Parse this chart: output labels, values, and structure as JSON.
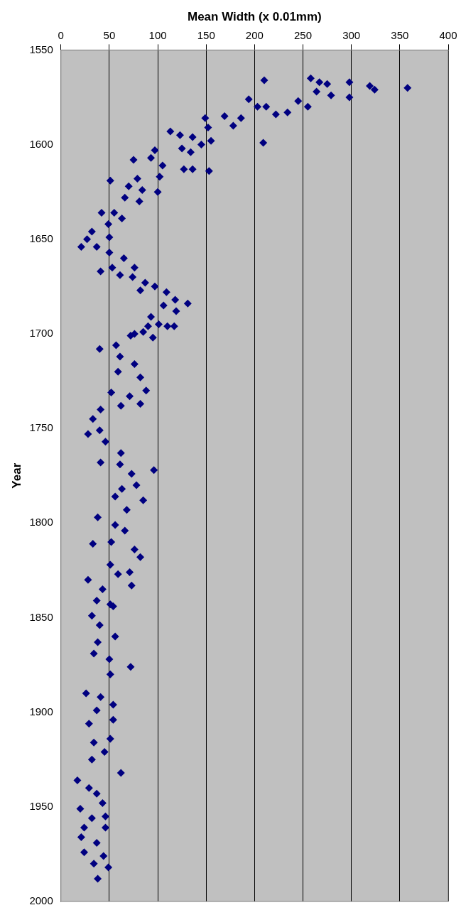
{
  "chart_data": {
    "type": "scatter",
    "xlabel": "Mean Width (x 0.01mm)",
    "ylabel": "Year",
    "xlim": [
      0,
      400
    ],
    "xticks": [
      0,
      50,
      100,
      150,
      200,
      250,
      300,
      350,
      400
    ],
    "ylim": [
      2000,
      1550
    ],
    "yticks": [
      1550,
      1600,
      1650,
      1700,
      1750,
      1800,
      1850,
      1900,
      1950,
      2000
    ],
    "grid": "x",
    "marker": "diamond",
    "legend": false,
    "series": [
      {
        "color": "#000080",
        "x": [
          210,
          258,
          267,
          275,
          298,
          319,
          324,
          358,
          264,
          279,
          298,
          194,
          203,
          212,
          222,
          234,
          245,
          255,
          149,
          169,
          186,
          178,
          152,
          113,
          123,
          136,
          155,
          209,
          145,
          125,
          134,
          97,
          93,
          105,
          75,
          127,
          136,
          153,
          102,
          51,
          79,
          70,
          84,
          100,
          66,
          81,
          42,
          55,
          63,
          49,
          32,
          27,
          21,
          37,
          50,
          50,
          65,
          41,
          53,
          61,
          76,
          74,
          87,
          82,
          97,
          109,
          118,
          131,
          106,
          119,
          93,
          101,
          117,
          85,
          72,
          90,
          110,
          76,
          95,
          40,
          57,
          61,
          76,
          59,
          82,
          88,
          71,
          52,
          82,
          62,
          41,
          33,
          40,
          28,
          46,
          62,
          41,
          96,
          61,
          73,
          78,
          63,
          85,
          56,
          68,
          38,
          56,
          66,
          33,
          52,
          76,
          82,
          51,
          71,
          28,
          59,
          73,
          43,
          37,
          51,
          54,
          32,
          40,
          56,
          38,
          34,
          50,
          72,
          51,
          26,
          41,
          54,
          37,
          54,
          29,
          51,
          34,
          45,
          32,
          62,
          17,
          29,
          37,
          43,
          20,
          32,
          46,
          24,
          46,
          21,
          37,
          24,
          44,
          34,
          49,
          38
        ],
        "values": [
          1566,
          1565,
          1567,
          1568,
          1567,
          1569,
          1571,
          1570,
          1572,
          1574,
          1575,
          1576,
          1580,
          1580,
          1584,
          1583,
          1577,
          1580,
          1586,
          1585,
          1586,
          1590,
          1591,
          1593,
          1595,
          1596,
          1598,
          1599,
          1600,
          1602,
          1604,
          1603,
          1607,
          1611,
          1608,
          1613,
          1613,
          1614,
          1617,
          1619,
          1618,
          1622,
          1624,
          1625,
          1628,
          1630,
          1636,
          1636,
          1639,
          1642,
          1646,
          1650,
          1654,
          1654,
          1649,
          1657,
          1660,
          1667,
          1665,
          1669,
          1665,
          1670,
          1673,
          1677,
          1675,
          1678,
          1682,
          1684,
          1685,
          1688,
          1691,
          1695,
          1696,
          1699,
          1701,
          1696,
          1696,
          1700,
          1702,
          1708,
          1706,
          1712,
          1716,
          1720,
          1723,
          1730,
          1733,
          1731,
          1737,
          1738,
          1740,
          1745,
          1751,
          1753,
          1757,
          1763,
          1768,
          1772,
          1769,
          1774,
          1780,
          1782,
          1788,
          1786,
          1793,
          1797,
          1801,
          1804,
          1811,
          1810,
          1814,
          1818,
          1822,
          1826,
          1830,
          1827,
          1833,
          1835,
          1841,
          1843,
          1844,
          1849,
          1854,
          1860,
          1863,
          1869,
          1872,
          1876,
          1880,
          1890,
          1892,
          1896,
          1899,
          1904,
          1906,
          1914,
          1916,
          1921,
          1925,
          1932,
          1936,
          1940,
          1943,
          1948,
          1951,
          1956,
          1955,
          1961,
          1961,
          1966,
          1969,
          1974,
          1976,
          1980,
          1982,
          1988
        ]
      }
    ]
  }
}
